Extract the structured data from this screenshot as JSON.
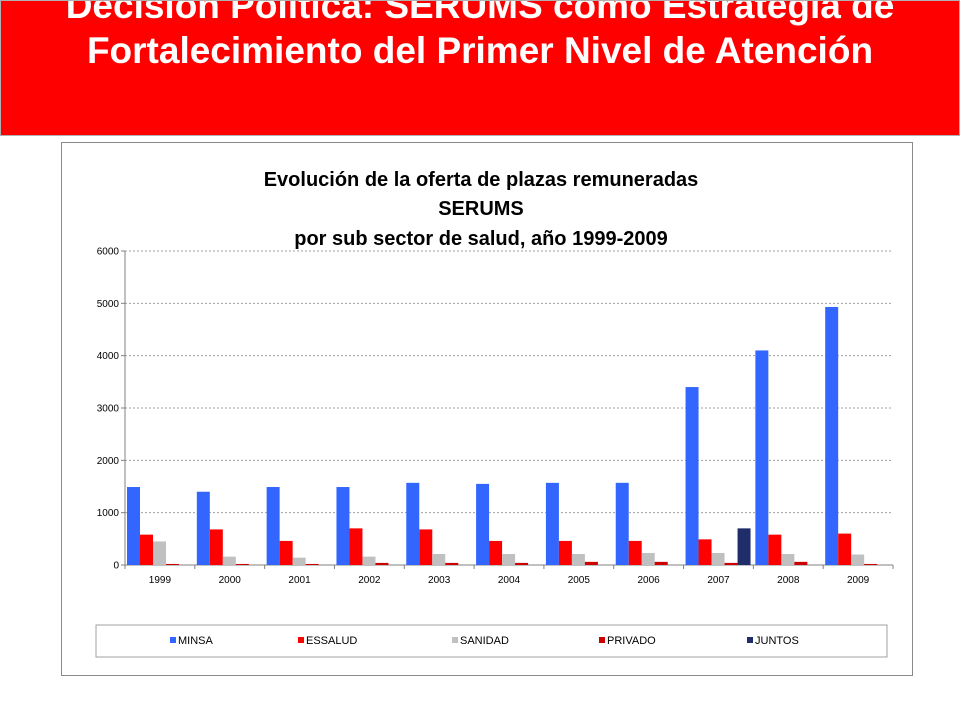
{
  "slide": {
    "title": "Decisión Política: SERUMS como Estrategia de Fortalecimiento del Primer Nivel de Atención"
  },
  "colors": {
    "banner": "#ff0000",
    "minsa": "#3366ff",
    "essalud": "#ff0000",
    "sanidad": "#c0c0c0",
    "privado": "#cc0000",
    "juntos": "#1f2d6b"
  },
  "chart_data": {
    "type": "bar",
    "title_lines": [
      "Evolución de la oferta de plazas remuneradas",
      "SERUMS",
      "por sub sector de salud, año 1999-2009"
    ],
    "categories": [
      "1999",
      "2000",
      "2001",
      "2002",
      "2003",
      "2004",
      "2005",
      "2006",
      "2007",
      "2008",
      "2009"
    ],
    "series": [
      {
        "name": "MINSA",
        "values": [
          1490,
          1400,
          1490,
          1490,
          1570,
          1550,
          1570,
          1570,
          3400,
          4100,
          4930
        ]
      },
      {
        "name": "ESSALUD",
        "values": [
          580,
          680,
          460,
          700,
          680,
          460,
          460,
          460,
          490,
          580,
          600
        ]
      },
      {
        "name": "SANIDAD",
        "values": [
          450,
          160,
          140,
          160,
          210,
          210,
          210,
          230,
          230,
          210,
          200
        ]
      },
      {
        "name": "PRIVADO",
        "values": [
          20,
          20,
          20,
          40,
          40,
          40,
          60,
          60,
          40,
          60,
          20
        ]
      },
      {
        "name": "JUNTOS",
        "values": [
          0,
          0,
          0,
          0,
          0,
          0,
          0,
          0,
          700,
          0,
          0
        ]
      }
    ],
    "ylim": [
      0,
      6000
    ],
    "yticks": [
      "0",
      "1000",
      "2000",
      "3000",
      "4000",
      "5000",
      "6000"
    ],
    "ytick_values": [
      0,
      1000,
      2000,
      3000,
      4000,
      5000,
      6000
    ],
    "grid": true,
    "legend_position": "bottom",
    "xlabel": "",
    "ylabel": ""
  }
}
